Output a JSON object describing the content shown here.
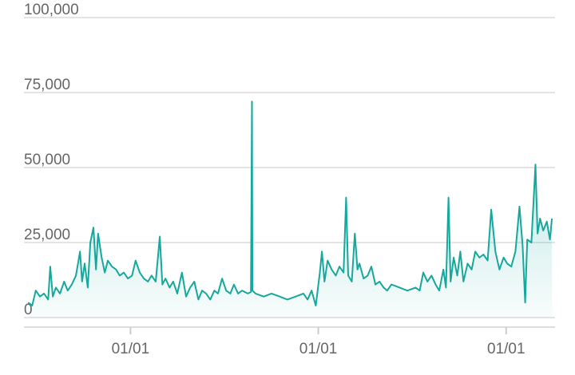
{
  "chart_data": {
    "type": "line",
    "color": "#16a89c",
    "fill_area": true,
    "grid": true,
    "x": [
      8,
      16,
      23,
      31,
      39,
      47,
      51,
      56,
      62,
      70,
      78,
      85,
      93,
      101,
      109,
      113,
      118,
      124,
      129,
      135,
      140,
      144,
      151,
      157,
      163,
      171,
      179,
      186,
      194,
      202,
      210,
      217,
      225,
      233,
      241,
      248,
      256,
      264,
      269,
      275,
      283,
      290,
      298,
      307,
      315,
      323,
      331,
      339,
      346,
      354,
      362,
      370,
      377,
      385,
      393,
      401,
      408,
      416,
      424,
      435,
      441,
      443,
      444,
      450,
      466,
      481,
      497,
      512,
      528,
      543,
      551,
      559,
      567,
      575,
      579,
      584,
      590,
      598,
      606,
      613,
      621,
      626,
      630,
      637,
      643,
      648,
      652,
      660,
      668,
      675,
      683,
      691,
      699,
      706,
      714,
      730,
      745,
      761,
      769,
      776,
      784,
      792,
      800,
      807,
      815,
      820,
      825,
      829,
      835,
      842,
      848,
      854,
      862,
      870,
      877,
      885,
      893,
      901,
      908,
      916,
      924,
      932,
      939,
      947,
      955,
      963,
      969,
      974,
      978,
      986,
      994,
      998,
      1003,
      1009,
      1016,
      1022,
      1026
    ],
    "values": [
      5000,
      4000,
      9000,
      7000,
      8000,
      6000,
      17000,
      7000,
      10000,
      8000,
      12000,
      9000,
      11000,
      14000,
      22000,
      12000,
      18000,
      10000,
      25000,
      30000,
      16000,
      28000,
      20000,
      15000,
      19000,
      17000,
      16000,
      14000,
      15000,
      13000,
      14000,
      19000,
      15000,
      13000,
      12000,
      14000,
      12000,
      27000,
      11000,
      13000,
      10000,
      12000,
      8000,
      15000,
      7000,
      10000,
      12000,
      6000,
      9000,
      8000,
      6000,
      9000,
      8000,
      13000,
      9000,
      8000,
      11000,
      8000,
      9000,
      8000,
      8500,
      72000,
      9000,
      8000,
      7000,
      8000,
      7000,
      6000,
      7000,
      8000,
      6000,
      9000,
      4000,
      15000,
      22000,
      12000,
      19000,
      16000,
      14000,
      17000,
      15000,
      40000,
      14000,
      12000,
      28000,
      16000,
      18000,
      13000,
      14000,
      17000,
      11000,
      12000,
      10000,
      9000,
      11000,
      10000,
      9000,
      10000,
      9000,
      15000,
      12000,
      14000,
      11000,
      9000,
      16000,
      10000,
      40000,
      12000,
      20000,
      14000,
      22000,
      12000,
      18000,
      16000,
      22000,
      20000,
      21000,
      19000,
      36000,
      22000,
      16000,
      20000,
      18000,
      17000,
      22000,
      37000,
      24000,
      5000,
      26000,
      25000,
      51000,
      28000,
      33000,
      29000,
      32000,
      26000,
      33000
    ],
    "xlim": [
      0,
      1032
    ],
    "xticks": [
      {
        "value": 207,
        "label": "01/01"
      },
      {
        "value": 572,
        "label": "01/01"
      },
      {
        "value": 937,
        "label": "01/01"
      }
    ],
    "ylim": [
      0,
      100000
    ],
    "yticks": [
      0,
      {
        "value": 25000,
        "label": "25,000"
      },
      {
        "value": 50000,
        "label": "50,000"
      },
      {
        "value": 75000,
        "label": "75,000"
      },
      {
        "value": 100000,
        "label": "100,000"
      }
    ]
  }
}
